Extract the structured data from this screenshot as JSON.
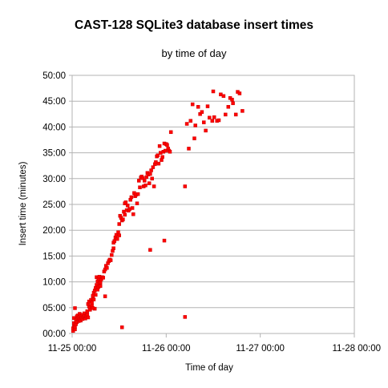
{
  "chart_data": {
    "type": "scatter",
    "title": "CAST-128 SQLite3 database insert times",
    "subtitle": "by time of day",
    "xlabel": "Time of day",
    "ylabel": "Insert time (minutes)",
    "x_unit": "days since 11-25 00:00",
    "y_unit": "minutes",
    "xlim": [
      0,
      3
    ],
    "ylim": [
      0,
      50
    ],
    "x_ticks": [
      {
        "value": 0,
        "label": "11-25 00:00"
      },
      {
        "value": 1,
        "label": "11-26 00:00"
      },
      {
        "value": 2,
        "label": "11-27 00:00"
      },
      {
        "value": 3,
        "label": "11-28 00:00"
      }
    ],
    "y_ticks": [
      {
        "value": 0,
        "label": "00:00"
      },
      {
        "value": 5,
        "label": "05:00"
      },
      {
        "value": 10,
        "label": "10:00"
      },
      {
        "value": 15,
        "label": "15:00"
      },
      {
        "value": 20,
        "label": "20:00"
      },
      {
        "value": 25,
        "label": "25:00"
      },
      {
        "value": 30,
        "label": "30:00"
      },
      {
        "value": 35,
        "label": "35:00"
      },
      {
        "value": 40,
        "label": "40:00"
      },
      {
        "value": 45,
        "label": "45:00"
      },
      {
        "value": 50,
        "label": "50:00"
      }
    ],
    "grid": {
      "horizontal": true,
      "vertical": false
    },
    "legend": "none",
    "marker_color": "#ff0000",
    "marker_stroke": "#cc0000",
    "series": [
      {
        "points": [
          [
            0.01,
            0.5
          ],
          [
            0.01,
            1.0
          ],
          [
            0.02,
            1.5
          ],
          [
            0.02,
            2.0
          ],
          [
            0.02,
            3.0
          ],
          [
            0.03,
            0.8
          ],
          [
            0.03,
            4.9
          ],
          [
            0.03,
            1.3
          ],
          [
            0.04,
            2.6
          ],
          [
            0.04,
            1.8
          ],
          [
            0.05,
            3.3
          ],
          [
            0.05,
            2.2
          ],
          [
            0.06,
            2.9
          ],
          [
            0.06,
            3.5
          ],
          [
            0.07,
            2.4
          ],
          [
            0.07,
            3.1
          ],
          [
            0.08,
            3.8
          ],
          [
            0.08,
            2.7
          ],
          [
            0.09,
            3.3
          ],
          [
            0.09,
            2.5
          ],
          [
            0.1,
            3.0
          ],
          [
            0.11,
            3.6
          ],
          [
            0.11,
            2.8
          ],
          [
            0.12,
            3.2
          ],
          [
            0.13,
            3.9
          ],
          [
            0.13,
            3.4
          ],
          [
            0.14,
            2.9
          ],
          [
            0.15,
            3.3
          ],
          [
            0.16,
            4.3
          ],
          [
            0.16,
            3.6
          ],
          [
            0.17,
            3.1
          ],
          [
            0.17,
            5.7
          ],
          [
            0.18,
            5.2
          ],
          [
            0.18,
            6.2
          ],
          [
            0.19,
            5.0
          ],
          [
            0.19,
            4.6
          ],
          [
            0.2,
            6.5
          ],
          [
            0.21,
            6.0
          ],
          [
            0.21,
            5.4
          ],
          [
            0.22,
            6.8
          ],
          [
            0.22,
            7.3
          ],
          [
            0.23,
            7.9
          ],
          [
            0.23,
            6.6
          ],
          [
            0.24,
            4.8
          ],
          [
            0.24,
            8.3
          ],
          [
            0.25,
            7.5
          ],
          [
            0.25,
            8.8
          ],
          [
            0.26,
            9.4
          ],
          [
            0.26,
            10.9
          ],
          [
            0.27,
            8.5
          ],
          [
            0.27,
            10.1
          ],
          [
            0.28,
            9.0
          ],
          [
            0.28,
            10.6
          ],
          [
            0.29,
            9.7
          ],
          [
            0.29,
            11.0
          ],
          [
            0.3,
            9.2
          ],
          [
            0.3,
            9.9
          ],
          [
            0.31,
            10.5
          ],
          [
            0.32,
            10.9
          ],
          [
            0.33,
            10.8
          ],
          [
            0.34,
            12.0
          ],
          [
            0.35,
            12.4
          ],
          [
            0.36,
            13.1
          ],
          [
            0.37,
            12.7
          ],
          [
            0.38,
            13.6
          ],
          [
            0.39,
            14.0
          ],
          [
            0.4,
            14.3
          ],
          [
            0.41,
            14.2
          ],
          [
            0.35,
            7.2
          ],
          [
            0.42,
            15.2
          ],
          [
            0.43,
            16.0
          ],
          [
            0.44,
            16.5
          ],
          [
            0.44,
            17.6
          ],
          [
            0.45,
            17.9
          ],
          [
            0.46,
            18.6
          ],
          [
            0.47,
            19.1
          ],
          [
            0.48,
            18.3
          ],
          [
            0.49,
            19.6
          ],
          [
            0.5,
            21.2
          ],
          [
            0.5,
            19.0
          ],
          [
            0.51,
            22.8
          ],
          [
            0.52,
            22.4
          ],
          [
            0.53,
            21.9
          ],
          [
            0.54,
            22.1
          ],
          [
            0.55,
            23.6
          ],
          [
            0.56,
            25.2
          ],
          [
            0.56,
            23.0
          ],
          [
            0.57,
            25.4
          ],
          [
            0.58,
            23.9
          ],
          [
            0.59,
            24.8
          ],
          [
            0.6,
            23.8
          ],
          [
            0.61,
            24.1
          ],
          [
            0.62,
            25.9
          ],
          [
            0.63,
            26.4
          ],
          [
            0.64,
            24.3
          ],
          [
            0.65,
            23.1
          ],
          [
            0.66,
            27.2
          ],
          [
            0.67,
            26.6
          ],
          [
            0.68,
            26.9
          ],
          [
            0.69,
            25.2
          ],
          [
            0.7,
            27.0
          ],
          [
            0.71,
            29.6
          ],
          [
            0.72,
            28.3
          ],
          [
            0.73,
            30.2
          ],
          [
            0.74,
            30.4
          ],
          [
            0.75,
            30.1
          ],
          [
            0.76,
            28.5
          ],
          [
            0.77,
            29.6
          ],
          [
            0.78,
            28.7
          ],
          [
            0.79,
            30.3
          ],
          [
            0.8,
            31.1
          ],
          [
            0.81,
            30.8
          ],
          [
            0.82,
            29.1
          ],
          [
            0.83,
            30.9
          ],
          [
            0.84,
            31.6
          ],
          [
            0.85,
            30.0
          ],
          [
            0.86,
            32.2
          ],
          [
            0.87,
            28.5
          ],
          [
            0.88,
            32.8
          ],
          [
            0.89,
            33.2
          ],
          [
            0.9,
            34.3
          ],
          [
            0.91,
            34.5
          ],
          [
            0.92,
            32.9
          ],
          [
            0.93,
            36.3
          ],
          [
            0.94,
            35.0
          ],
          [
            0.95,
            33.6
          ],
          [
            0.96,
            34.2
          ],
          [
            0.97,
            35.2
          ],
          [
            0.98,
            36.8
          ],
          [
            0.99,
            35.4
          ],
          [
            1.0,
            36.7
          ],
          [
            1.01,
            36.5
          ],
          [
            1.02,
            35.8
          ],
          [
            1.03,
            35.4
          ],
          [
            1.04,
            35.2
          ],
          [
            1.05,
            39.0
          ],
          [
            0.53,
            1.2
          ],
          [
            0.22,
            4.9
          ],
          [
            0.83,
            16.2
          ],
          [
            0.98,
            18.0
          ],
          [
            1.2,
            28.5
          ],
          [
            1.22,
            40.6
          ],
          [
            1.24,
            35.8
          ],
          [
            1.26,
            41.2
          ],
          [
            1.28,
            44.4
          ],
          [
            1.31,
            40.3
          ],
          [
            1.34,
            43.9
          ],
          [
            1.36,
            42.5
          ],
          [
            1.38,
            42.9
          ],
          [
            1.4,
            40.9
          ],
          [
            1.42,
            39.3
          ],
          [
            1.44,
            44.0
          ],
          [
            1.46,
            41.8
          ],
          [
            1.49,
            41.2
          ],
          [
            1.51,
            41.9
          ],
          [
            1.54,
            41.2
          ],
          [
            1.56,
            41.3
          ],
          [
            1.58,
            46.3
          ],
          [
            1.61,
            46.0
          ],
          [
            1.63,
            42.4
          ],
          [
            1.66,
            43.9
          ],
          [
            1.68,
            45.6
          ],
          [
            1.7,
            45.3
          ],
          [
            1.71,
            44.6
          ],
          [
            1.74,
            42.4
          ],
          [
            1.76,
            46.8
          ],
          [
            1.78,
            46.5
          ],
          [
            1.81,
            43.1
          ],
          [
            1.2,
            3.2
          ],
          [
            1.5,
            46.9
          ],
          [
            1.3,
            37.8
          ]
        ]
      }
    ]
  }
}
